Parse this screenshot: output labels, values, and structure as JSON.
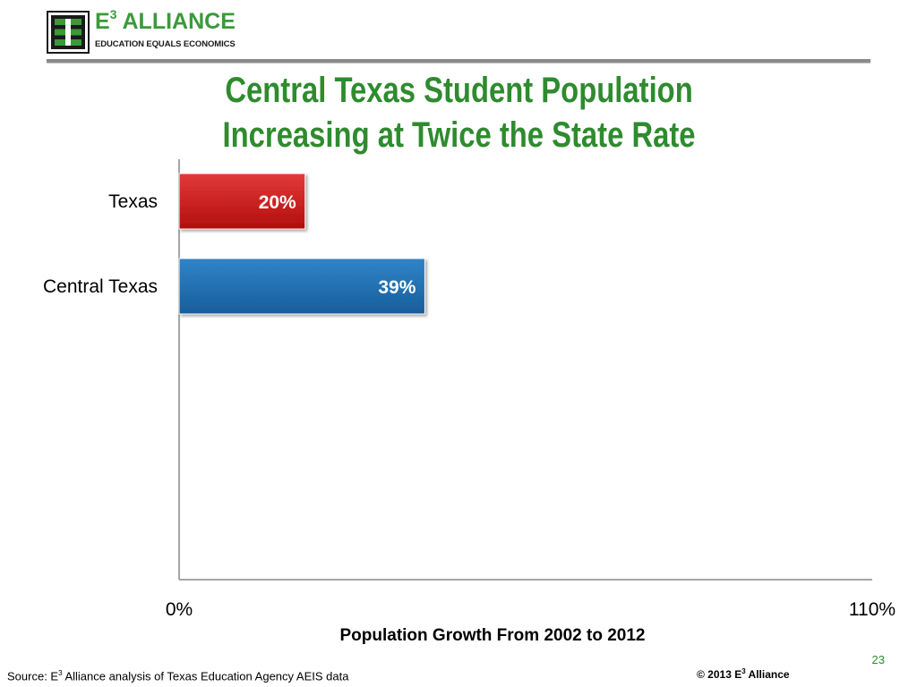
{
  "logo": {
    "name_prefix": "E",
    "name_superscript": "3",
    "name_suffix": " ALLIANCE",
    "tagline": "EDUCATION EQUALS ECONOMICS"
  },
  "title": {
    "line1": "Central Texas Student Population",
    "line2": "Increasing at Twice the State Rate"
  },
  "colors": {
    "title": "#2e8b2e",
    "texas_bar": "#cc1111",
    "central_texas_bar": "#1f6fb2",
    "axis": "#a6a6a6"
  },
  "chart_data": {
    "type": "bar",
    "orientation": "horizontal",
    "categories": [
      "Texas",
      "Central Texas"
    ],
    "values": [
      20,
      39
    ],
    "data_labels": [
      "20%",
      "39%"
    ],
    "bar_colors": [
      "#cc1111",
      "#1f6fb2"
    ],
    "xlim": [
      0,
      110
    ],
    "x_tick_labels": [
      "0%",
      "110%"
    ],
    "xlabel": "Population Growth From 2002 to 2012",
    "grid": false,
    "legend": "none"
  },
  "footer": {
    "source_prefix": "Source: E",
    "source_superscript": "3",
    "source_suffix": " Alliance analysis of Texas Education Agency AEIS data",
    "copyright_prefix": "© 2013 E",
    "copyright_superscript": "3",
    "copyright_suffix": " Alliance",
    "page_number": "23"
  }
}
